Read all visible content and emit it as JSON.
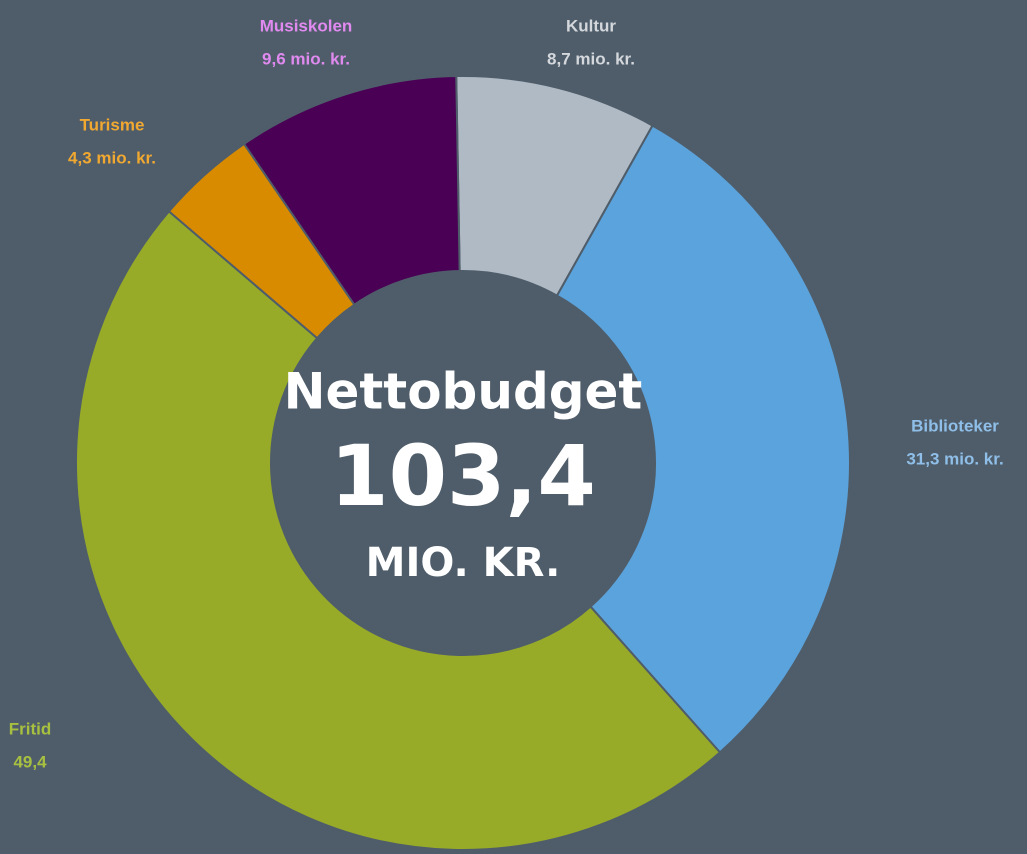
{
  "chart_data": {
    "type": "donut",
    "categories": [
      "Kultur",
      "Biblioteker",
      "Fritid",
      "Turisme",
      "Musiskolen"
    ],
    "values": [
      8.7,
      31.3,
      49.4,
      4.3,
      9.6
    ],
    "value_labels": [
      "8,7 mio. kr.",
      "31,3 mio. kr.",
      "49,4",
      "4,3 mio. kr.",
      "9,6 mio. kr."
    ],
    "colors": [
      "#b0bac4",
      "#5ba3dc",
      "#98ab28",
      "#d98b00",
      "#4a0055"
    ],
    "label_colors": [
      "#d4d8dc",
      "#8fbfe8",
      "#a8c040",
      "#f0a830",
      "#e08af0"
    ],
    "center_text": [
      "Nettobudget",
      "103,4",
      "MIO. KR."
    ]
  }
}
